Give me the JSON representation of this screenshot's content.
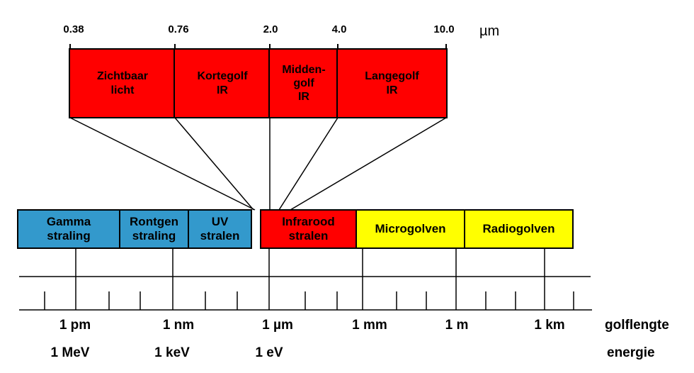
{
  "detail": {
    "unit": "µm",
    "ticks": [
      "0.38",
      "0.76",
      "2.0",
      "4.0",
      "10.0"
    ],
    "bands": [
      {
        "label": "Zichtbaar\nlicht"
      },
      {
        "label": "Kortegolf\nIR"
      },
      {
        "label": "Midden-\ngolf\nIR"
      },
      {
        "label": "Langegolf\nIR"
      }
    ]
  },
  "spectrum": {
    "bands": [
      {
        "label": "Gamma\nstraling"
      },
      {
        "label": "Rontgen\nstraling"
      },
      {
        "label": "UV\nstralen"
      },
      {
        "label": "Infrarood\nstralen"
      },
      {
        "label": "Microgolven"
      },
      {
        "label": "Radiogolven"
      }
    ]
  },
  "scale": {
    "wavelength_labels": [
      "1 pm",
      "1 nm",
      "1 µm",
      "1 mm",
      "1 m",
      "1 km"
    ],
    "energy_labels": [
      "1 MeV",
      "1 keV",
      "1 eV"
    ],
    "wavelength_caption": "golflengte",
    "energy_caption": "energie"
  },
  "colors": {
    "infrared": "#ff0000",
    "ionizing": "#3399cc",
    "radio": "#ffff00"
  }
}
